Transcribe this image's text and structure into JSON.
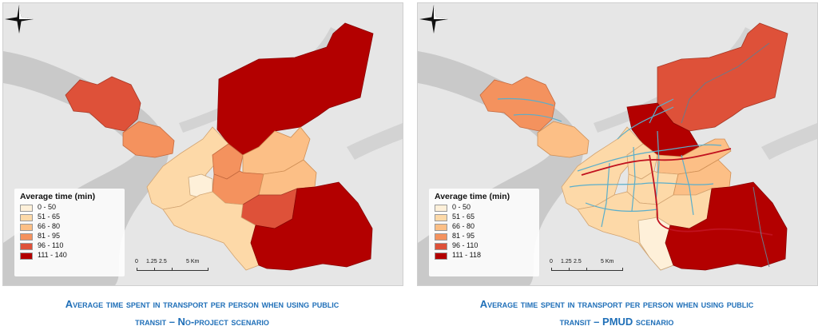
{
  "panels": [
    {
      "legend_title": "Average time (min)",
      "legend": [
        {
          "label": "0 - 50",
          "color": "#fef0d9"
        },
        {
          "label": "51 - 65",
          "color": "#fdd9a8"
        },
        {
          "label": "66 - 80",
          "color": "#fcbf86"
        },
        {
          "label": "81 - 95",
          "color": "#f4925e"
        },
        {
          "label": "96 - 110",
          "color": "#de5139"
        },
        {
          "label": "111 - 140",
          "color": "#b30000"
        }
      ],
      "scale": {
        "labels": [
          "0",
          "1.25",
          "2.5",
          "5 Km"
        ]
      },
      "caption_line1": "Average time spent in transport per person when using public",
      "caption_line2": "transit – No-project scenario"
    },
    {
      "legend_title": "Average time (min)",
      "legend": [
        {
          "label": "0 - 50",
          "color": "#fef0d9"
        },
        {
          "label": "51 - 65",
          "color": "#fdd9a8"
        },
        {
          "label": "66 - 80",
          "color": "#fcbf86"
        },
        {
          "label": "81 - 95",
          "color": "#f4925e"
        },
        {
          "label": "96 - 110",
          "color": "#de5139"
        },
        {
          "label": "111 - 118",
          "color": "#b30000"
        }
      ],
      "scale": {
        "labels": [
          "0",
          "1.25",
          "2.5",
          "5 Km"
        ]
      },
      "caption_line1": "Average time spent in transport per person when using public",
      "caption_line2": "transit – PMUD scenario"
    }
  ],
  "colors": {
    "caption": "#1f6fb8",
    "water": "#c9c9c9",
    "land": "#e6e6e6",
    "transit_line": "#5aaecb",
    "brt_line": "#c1121f"
  },
  "icons": {
    "north_arrow": "compass-rose-icon"
  }
}
